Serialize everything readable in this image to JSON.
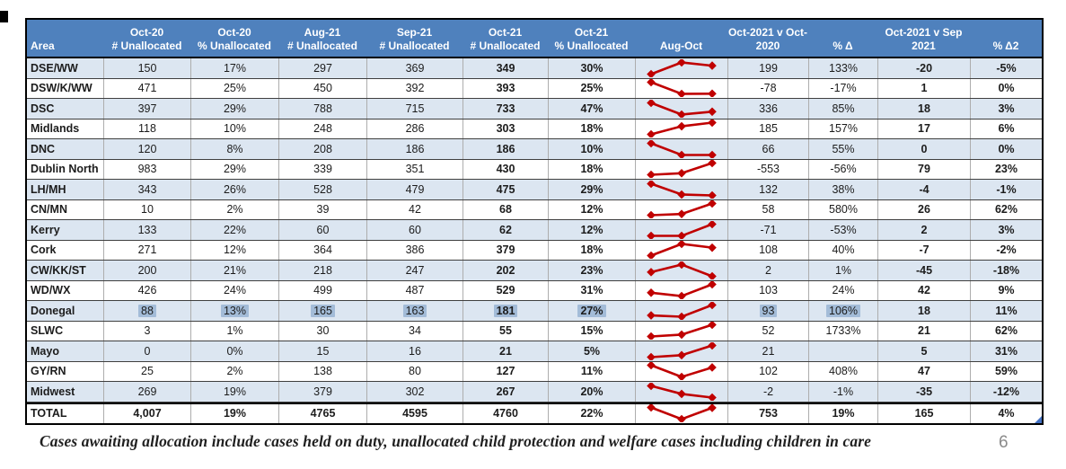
{
  "page": {
    "footnote": "Cases awaiting allocation include cases held on duty, unallocated child protection and welfare cases including children in care",
    "number": "6"
  },
  "colors": {
    "header_bg": "#4f81bd",
    "band_row_bg": "#dce6f1",
    "highlight_bg": "#a3bcd8",
    "sparkline_red": "#c00000",
    "corner_handle_blue": "#4472c4"
  },
  "table": {
    "columns": [
      {
        "line1": "",
        "line2": "Area"
      },
      {
        "line1": "Oct-20",
        "line2": "# Unallocated"
      },
      {
        "line1": "Oct-20",
        "line2": "% Unallocated"
      },
      {
        "line1": "Aug-21",
        "line2": "# Unallocated"
      },
      {
        "line1": "Sep-21",
        "line2": "# Unallocated"
      },
      {
        "line1": "Oct-21",
        "line2": "# Unallocated"
      },
      {
        "line1": "Oct-21",
        "line2": "% Unallocated"
      },
      {
        "line1": "",
        "line2": "Aug-Oct"
      },
      {
        "line1": "Oct-2021 v Oct-",
        "line2": "2020"
      },
      {
        "line1": "",
        "line2": "% Δ"
      },
      {
        "line1": "Oct-2021 v Sep",
        "line2": "2021"
      },
      {
        "line1": "",
        "line2": "% Δ2"
      }
    ],
    "rows": [
      {
        "area": "DSE/WW",
        "oct20_n": "150",
        "oct20_p": "17%",
        "aug21": "297",
        "sep21": "369",
        "oct21_n": "349",
        "oct21_p": "30%",
        "spark": [
          297,
          369,
          349
        ],
        "d_oct": "199",
        "d_oct_p": "133%",
        "d_sep": "-20",
        "d_sep_p": "-5%",
        "highlighted": false
      },
      {
        "area": "DSW/K/WW",
        "oct20_n": "471",
        "oct20_p": "25%",
        "aug21": "450",
        "sep21": "392",
        "oct21_n": "393",
        "oct21_p": "25%",
        "spark": [
          450,
          392,
          393
        ],
        "d_oct": "-78",
        "d_oct_p": "-17%",
        "d_sep": "1",
        "d_sep_p": "0%",
        "highlighted": false
      },
      {
        "area": "DSC",
        "oct20_n": "397",
        "oct20_p": "29%",
        "aug21": "788",
        "sep21": "715",
        "oct21_n": "733",
        "oct21_p": "47%",
        "spark": [
          788,
          715,
          733
        ],
        "d_oct": "336",
        "d_oct_p": "85%",
        "d_sep": "18",
        "d_sep_p": "3%",
        "highlighted": false
      },
      {
        "area": "Midlands",
        "oct20_n": "118",
        "oct20_p": "10%",
        "aug21": "248",
        "sep21": "286",
        "oct21_n": "303",
        "oct21_p": "18%",
        "spark": [
          248,
          286,
          303
        ],
        "d_oct": "185",
        "d_oct_p": "157%",
        "d_sep": "17",
        "d_sep_p": "6%",
        "highlighted": false
      },
      {
        "area": "DNC",
        "oct20_n": "120",
        "oct20_p": "8%",
        "aug21": "208",
        "sep21": "186",
        "oct21_n": "186",
        "oct21_p": "10%",
        "spark": [
          208,
          186,
          186
        ],
        "d_oct": "66",
        "d_oct_p": "55%",
        "d_sep": "0",
        "d_sep_p": "0%",
        "highlighted": false
      },
      {
        "area": "Dublin North",
        "oct20_n": "983",
        "oct20_p": "29%",
        "aug21": "339",
        "sep21": "351",
        "oct21_n": "430",
        "oct21_p": "18%",
        "spark": [
          339,
          351,
          430
        ],
        "d_oct": "-553",
        "d_oct_p": "-56%",
        "d_sep": "79",
        "d_sep_p": "23%",
        "highlighted": false
      },
      {
        "area": "LH/MH",
        "oct20_n": "343",
        "oct20_p": "26%",
        "aug21": "528",
        "sep21": "479",
        "oct21_n": "475",
        "oct21_p": "29%",
        "spark": [
          528,
          479,
          475
        ],
        "d_oct": "132",
        "d_oct_p": "38%",
        "d_sep": "-4",
        "d_sep_p": "-1%",
        "highlighted": false
      },
      {
        "area": "CN/MN",
        "oct20_n": "10",
        "oct20_p": "2%",
        "aug21": "39",
        "sep21": "42",
        "oct21_n": "68",
        "oct21_p": "12%",
        "spark": [
          39,
          42,
          68
        ],
        "d_oct": "58",
        "d_oct_p": "580%",
        "d_sep": "26",
        "d_sep_p": "62%",
        "highlighted": false
      },
      {
        "area": "Kerry",
        "oct20_n": "133",
        "oct20_p": "22%",
        "aug21": "60",
        "sep21": "60",
        "oct21_n": "62",
        "oct21_p": "12%",
        "spark": [
          60,
          60,
          62
        ],
        "d_oct": "-71",
        "d_oct_p": "-53%",
        "d_sep": "2",
        "d_sep_p": "3%",
        "highlighted": false
      },
      {
        "area": "Cork",
        "oct20_n": "271",
        "oct20_p": "12%",
        "aug21": "364",
        "sep21": "386",
        "oct21_n": "379",
        "oct21_p": "18%",
        "spark": [
          364,
          386,
          379
        ],
        "d_oct": "108",
        "d_oct_p": "40%",
        "d_sep": "-7",
        "d_sep_p": "-2%",
        "highlighted": false
      },
      {
        "area": "CW/KK/ST",
        "oct20_n": "200",
        "oct20_p": "21%",
        "aug21": "218",
        "sep21": "247",
        "oct21_n": "202",
        "oct21_p": "23%",
        "spark": [
          218,
          247,
          202
        ],
        "d_oct": "2",
        "d_oct_p": "1%",
        "d_sep": "-45",
        "d_sep_p": "-18%",
        "highlighted": false
      },
      {
        "area": "WD/WX",
        "oct20_n": "426",
        "oct20_p": "24%",
        "aug21": "499",
        "sep21": "487",
        "oct21_n": "529",
        "oct21_p": "31%",
        "spark": [
          499,
          487,
          529
        ],
        "d_oct": "103",
        "d_oct_p": "24%",
        "d_sep": "42",
        "d_sep_p": "9%",
        "highlighted": false
      },
      {
        "area": "Donegal",
        "oct20_n": "88",
        "oct20_p": "13%",
        "aug21": "165",
        "sep21": "163",
        "oct21_n": "181",
        "oct21_p": "27%",
        "spark": [
          165,
          163,
          181
        ],
        "d_oct": "93",
        "d_oct_p": "106%",
        "d_sep": "18",
        "d_sep_p": "11%",
        "highlighted": true
      },
      {
        "area": "SLWC",
        "oct20_n": "3",
        "oct20_p": "1%",
        "aug21": "30",
        "sep21": "34",
        "oct21_n": "55",
        "oct21_p": "15%",
        "spark": [
          30,
          34,
          55
        ],
        "d_oct": "52",
        "d_oct_p": "1733%",
        "d_sep": "21",
        "d_sep_p": "62%",
        "highlighted": false
      },
      {
        "area": "Mayo",
        "oct20_n": "0",
        "oct20_p": "0%",
        "aug21": "15",
        "sep21": "16",
        "oct21_n": "21",
        "oct21_p": "5%",
        "spark": [
          15,
          16,
          21
        ],
        "d_oct": "21",
        "d_oct_p": "",
        "d_sep": "5",
        "d_sep_p": "31%",
        "highlighted": false
      },
      {
        "area": "GY/RN",
        "oct20_n": "25",
        "oct20_p": "2%",
        "aug21": "138",
        "sep21": "80",
        "oct21_n": "127",
        "oct21_p": "11%",
        "spark": [
          138,
          80,
          127
        ],
        "d_oct": "102",
        "d_oct_p": "408%",
        "d_sep": "47",
        "d_sep_p": "59%",
        "highlighted": false
      },
      {
        "area": "Midwest",
        "oct20_n": "269",
        "oct20_p": "19%",
        "aug21": "379",
        "sep21": "302",
        "oct21_n": "267",
        "oct21_p": "20%",
        "spark": [
          379,
          302,
          267
        ],
        "d_oct": "-2",
        "d_oct_p": "-1%",
        "d_sep": "-35",
        "d_sep_p": "-12%",
        "highlighted": false
      },
      {
        "area": "TOTAL",
        "oct20_n": "4,007",
        "oct20_p": "19%",
        "aug21": "4765",
        "sep21": "4595",
        "oct21_n": "4760",
        "oct21_p": "22%",
        "spark": [
          4765,
          4595,
          4760
        ],
        "d_oct": "753",
        "d_oct_p": "19%",
        "d_sep": "165",
        "d_sep_p": "4%",
        "highlighted": false,
        "is_total": true
      }
    ]
  }
}
